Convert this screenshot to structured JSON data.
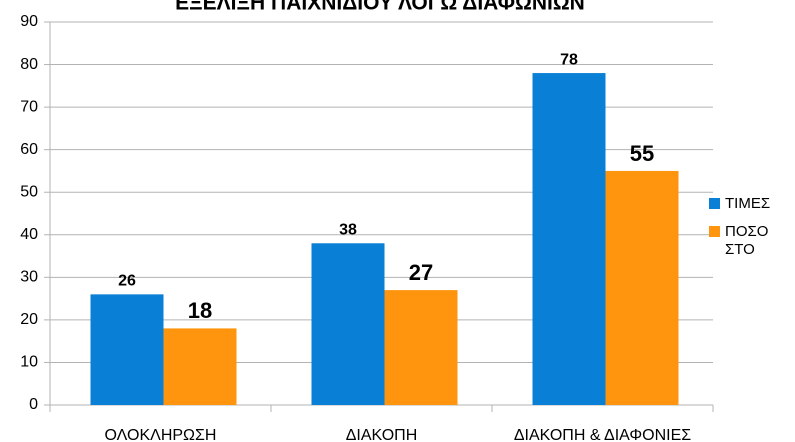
{
  "chart_data": {
    "type": "bar",
    "title": "ΕΞΕΛΙΞΗ ΠΑΙΧΝΙΔΙΟΥ ΛΟΓΩ ΔΙΑΦΩΝΙΩΝ",
    "categories": [
      "ΟΛΟΚΛΗΡΩΣΗ",
      "ΔΙΑΚΟΠΗ",
      "ΔΙΑΚΟΠΗ & ΔΙΑΦΟΝΙΕΣ"
    ],
    "series": [
      {
        "name": "ΤΙΜΕΣ",
        "color": "#0a7fd6",
        "values": [
          26,
          38,
          78
        ]
      },
      {
        "name": "ΠΟΣΟΣΤΟ",
        "color": "#ff950e",
        "values": [
          18,
          27,
          55
        ]
      }
    ],
    "ylim": [
      0,
      90
    ],
    "yticks": [
      0,
      10,
      20,
      30,
      40,
      50,
      60,
      70,
      80,
      90
    ],
    "grid": true,
    "legend": "right"
  }
}
